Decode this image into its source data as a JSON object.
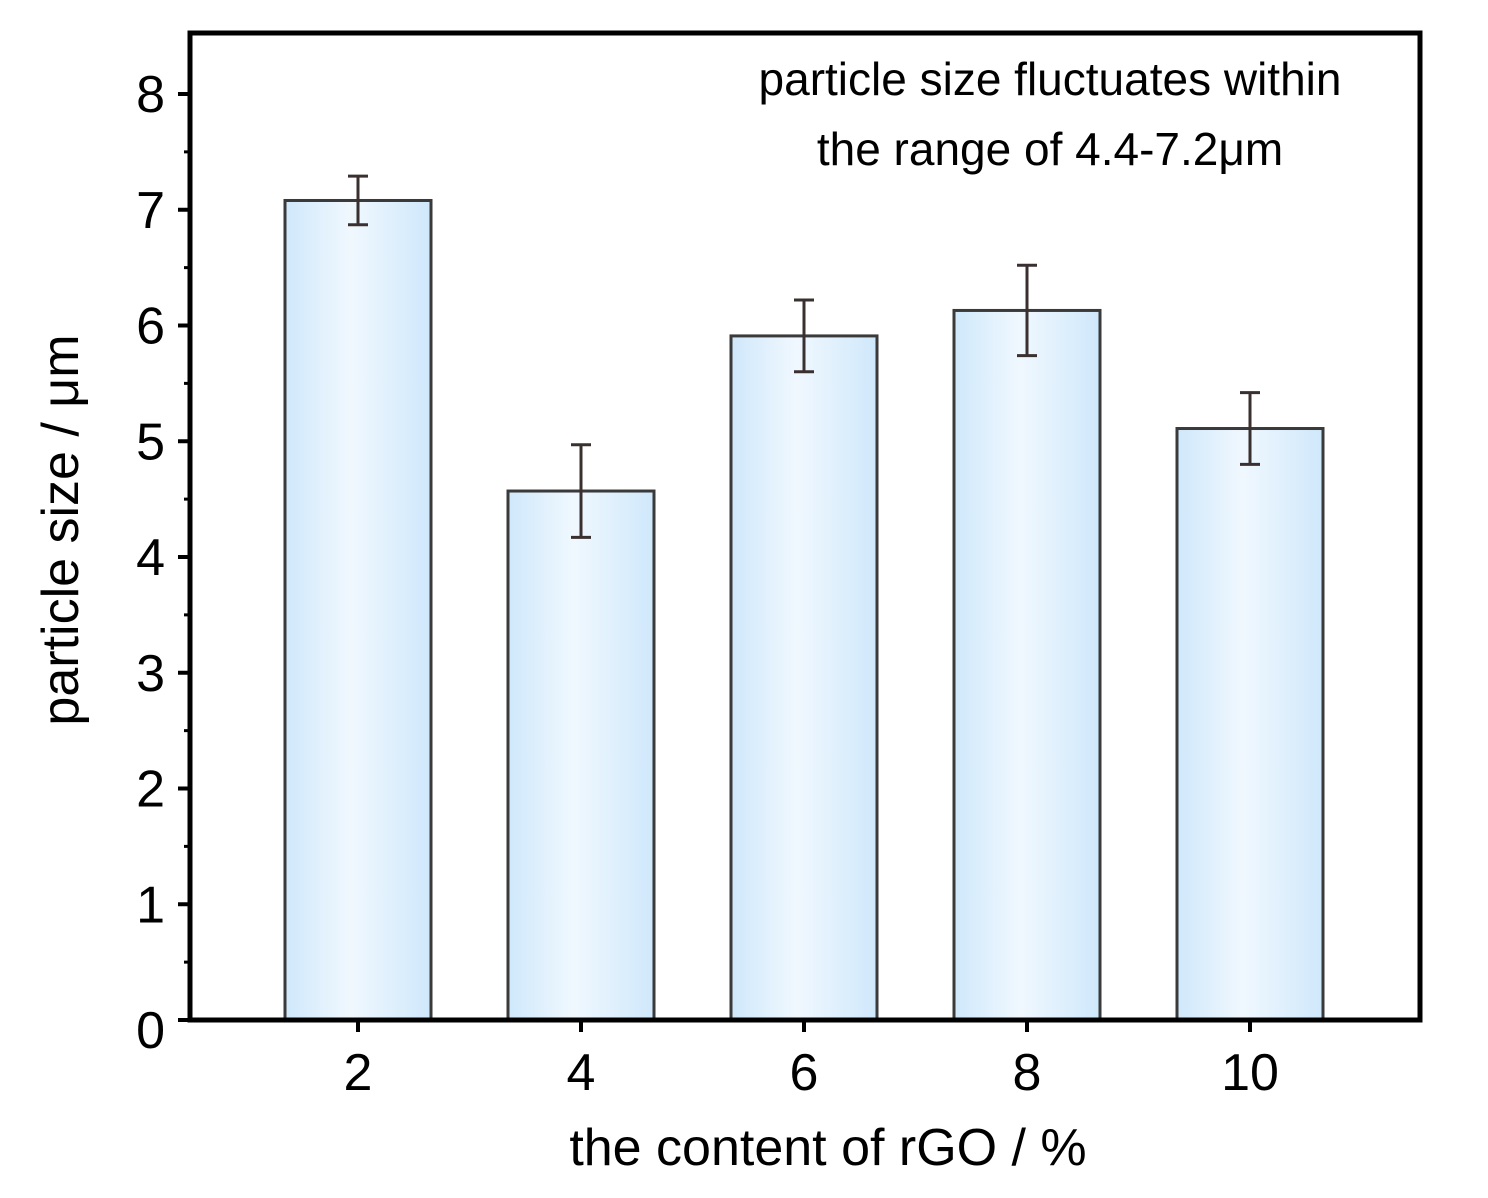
{
  "chart_data": {
    "type": "bar",
    "title": "",
    "xlabel": "the content of rGO / %",
    "ylabel": "particle size / μm",
    "categories": [
      "2",
      "4",
      "6",
      "8",
      "10"
    ],
    "values": [
      7.08,
      4.57,
      5.91,
      6.13,
      5.11
    ],
    "errors": [
      0.21,
      0.4,
      0.31,
      0.39,
      0.31
    ],
    "ylim": [
      0,
      8.5
    ],
    "yticks": [
      "0",
      "1",
      "2",
      "3",
      "4",
      "5",
      "6",
      "7",
      "8"
    ],
    "grid": false,
    "annotation": [
      "particle size fluctuates within",
      "the range of 4.4-7.2μm"
    ],
    "colors": {
      "bar_edge": "#3a3a3a",
      "bar_fill_light": "#f0f8fe",
      "bar_fill_dark": "#cfe8fb",
      "error_bar": "#3a3030"
    }
  }
}
